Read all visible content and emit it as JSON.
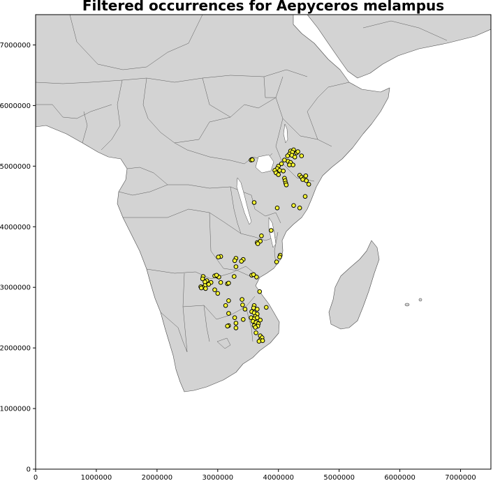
{
  "chart_data": {
    "type": "scatter",
    "title": "Filtered occurrences for Aepyceros melampus",
    "xlim": [
      0,
      7500000
    ],
    "ylim": [
      0,
      7500000
    ],
    "x_ticks": [
      0,
      1000000,
      2000000,
      3000000,
      4000000,
      5000000,
      6000000,
      7000000
    ],
    "y_ticks": [
      0,
      1000000,
      2000000,
      3000000,
      4000000,
      5000000,
      6000000,
      7000000
    ],
    "x_tick_labels": [
      "0",
      "1000000",
      "2000000",
      "3000000",
      "4000000",
      "5000000",
      "6000000",
      "7000000"
    ],
    "y_tick_labels": [
      "0",
      "1000000",
      "2000000",
      "3000000",
      "4000000",
      "5000000",
      "6000000",
      "7000000"
    ],
    "basemap": "Africa country boundaries (light grey land)",
    "land_color": "#d3d3d3",
    "marker_color": "#ffff33",
    "marker_edge_color": "#000000",
    "series": [
      {
        "points": [
          [
            3560000,
            5110000
          ],
          [
            3550000,
            5100000
          ],
          [
            3570000,
            5105000
          ],
          [
            4200000,
            5250000
          ],
          [
            4250000,
            5270000
          ],
          [
            4230000,
            5230000
          ],
          [
            4180000,
            5200000
          ],
          [
            4300000,
            5220000
          ],
          [
            4150000,
            5170000
          ],
          [
            4220000,
            5180000
          ],
          [
            4270000,
            5150000
          ],
          [
            4320000,
            5240000
          ],
          [
            4380000,
            5170000
          ],
          [
            4100000,
            5100000
          ],
          [
            4160000,
            5080000
          ],
          [
            4200000,
            5060000
          ],
          [
            4240000,
            5020000
          ],
          [
            4180000,
            5020000
          ],
          [
            4050000,
            5040000
          ],
          [
            4000000,
            5000000
          ],
          [
            3980000,
            4960000
          ],
          [
            4020000,
            4930000
          ],
          [
            4080000,
            4920000
          ],
          [
            3940000,
            4930000
          ],
          [
            3960000,
            4890000
          ],
          [
            4000000,
            4860000
          ],
          [
            4100000,
            4800000
          ],
          [
            4110000,
            4760000
          ],
          [
            4120000,
            4720000
          ],
          [
            4130000,
            4690000
          ],
          [
            4350000,
            4850000
          ],
          [
            4380000,
            4820000
          ],
          [
            4420000,
            4800000
          ],
          [
            4450000,
            4840000
          ],
          [
            4460000,
            4760000
          ],
          [
            4400000,
            4780000
          ],
          [
            4500000,
            4700000
          ],
          [
            4440000,
            4500000
          ],
          [
            4250000,
            4350000
          ],
          [
            4350000,
            4310000
          ],
          [
            3980000,
            4310000
          ],
          [
            3600000,
            4400000
          ],
          [
            3880000,
            3940000
          ],
          [
            3720000,
            3850000
          ],
          [
            3650000,
            3740000
          ],
          [
            3700000,
            3760000
          ],
          [
            3660000,
            3720000
          ],
          [
            4030000,
            3530000
          ],
          [
            4020000,
            3500000
          ],
          [
            3970000,
            3420000
          ],
          [
            3050000,
            3510000
          ],
          [
            3010000,
            3500000
          ],
          [
            3300000,
            3480000
          ],
          [
            3420000,
            3460000
          ],
          [
            3280000,
            3440000
          ],
          [
            3390000,
            3430000
          ],
          [
            3300000,
            3340000
          ],
          [
            2950000,
            3190000
          ],
          [
            3000000,
            3180000
          ],
          [
            3020000,
            3170000
          ],
          [
            2980000,
            3200000
          ],
          [
            3270000,
            3180000
          ],
          [
            3560000,
            3200000
          ],
          [
            3590000,
            3210000
          ],
          [
            3640000,
            3170000
          ],
          [
            2760000,
            3180000
          ],
          [
            2750000,
            3140000
          ],
          [
            2820000,
            3110000
          ],
          [
            2790000,
            3090000
          ],
          [
            2890000,
            3080000
          ],
          [
            2850000,
            3050000
          ],
          [
            2790000,
            3030000
          ],
          [
            2750000,
            3000000
          ],
          [
            2720000,
            3010000
          ],
          [
            2730000,
            2990000
          ],
          [
            2800000,
            2980000
          ],
          [
            3050000,
            3080000
          ],
          [
            3160000,
            3060000
          ],
          [
            3180000,
            3070000
          ],
          [
            2950000,
            2960000
          ],
          [
            3000000,
            2900000
          ],
          [
            3690000,
            2930000
          ],
          [
            3400000,
            2800000
          ],
          [
            3180000,
            2780000
          ],
          [
            3130000,
            2700000
          ],
          [
            3410000,
            2710000
          ],
          [
            3600000,
            2700000
          ],
          [
            3590000,
            2660000
          ],
          [
            3450000,
            2640000
          ],
          [
            3800000,
            2670000
          ],
          [
            3650000,
            2640000
          ],
          [
            3180000,
            2570000
          ],
          [
            3560000,
            2600000
          ],
          [
            3600000,
            2580000
          ],
          [
            3650000,
            2560000
          ],
          [
            3280000,
            2500000
          ],
          [
            3420000,
            2470000
          ],
          [
            3550000,
            2500000
          ],
          [
            3620000,
            2520000
          ],
          [
            3600000,
            2480000
          ],
          [
            3650000,
            2500000
          ],
          [
            3700000,
            2460000
          ],
          [
            3580000,
            2440000
          ],
          [
            3630000,
            2420000
          ],
          [
            3300000,
            2410000
          ],
          [
            3670000,
            2400000
          ],
          [
            3600000,
            2370000
          ],
          [
            3660000,
            2360000
          ],
          [
            3620000,
            2340000
          ],
          [
            3180000,
            2370000
          ],
          [
            3160000,
            2360000
          ],
          [
            3300000,
            2330000
          ],
          [
            3630000,
            2250000
          ],
          [
            3700000,
            2200000
          ],
          [
            3730000,
            2170000
          ],
          [
            3700000,
            2130000
          ],
          [
            3680000,
            2110000
          ],
          [
            3740000,
            2120000
          ]
        ]
      }
    ]
  }
}
